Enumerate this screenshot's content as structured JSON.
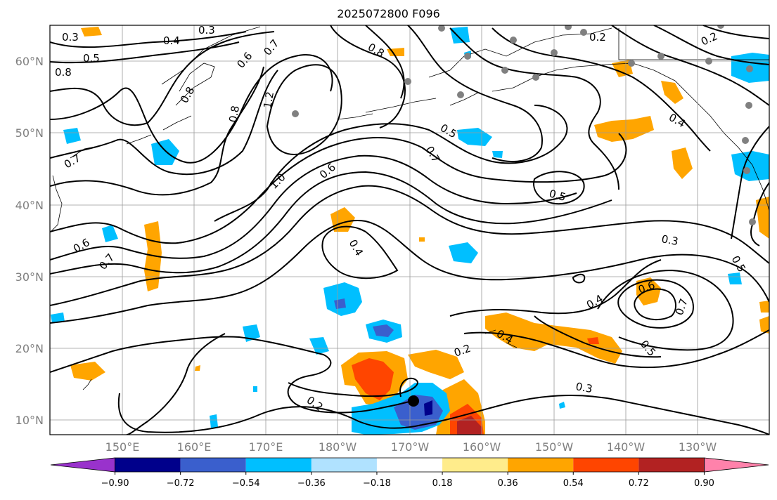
{
  "map": {
    "title": "2025072800 F096",
    "lat_labels": [
      "60°N",
      "50°N",
      "40°N",
      "30°N",
      "20°N",
      "10°N"
    ],
    "lon_labels": [
      "150°E",
      "160°E",
      "170°E",
      "180°W",
      "170°W",
      "160°W",
      "150°W",
      "140°W",
      "130°W"
    ],
    "contour_labels": [
      "0.3",
      "0.3",
      "0.4",
      "0.5",
      "0.6",
      "0.7",
      "0.8",
      "0.8",
      "0.2",
      "0.2",
      "0.8",
      "1.2",
      "0.8",
      "0.7",
      "0.5",
      "0.7",
      "0.6",
      "1.0",
      "0.6",
      "0.7",
      "0.5",
      "0.4",
      "0.4",
      "0.3",
      "0.5",
      "0.4",
      "0.6",
      "0.7",
      "0.5",
      "0.4",
      "0.2",
      "0.3",
      "0.2"
    ],
    "storm_center_marker": true,
    "colors": {
      "land_coast": "#000000",
      "station_dot": "#808080",
      "grid": "#9a9a9a"
    }
  },
  "colorbar": {
    "ticks": [
      "−0.90",
      "−0.72",
      "−0.54",
      "−0.36",
      "−0.18",
      "0.18",
      "0.36",
      "0.54",
      "0.72",
      "0.90"
    ],
    "colors": [
      "#9932cc",
      "#00008b",
      "#3a5fcd",
      "#00bfff",
      "#b0e2ff",
      "#ffffff",
      "#ffec8b",
      "#ffa500",
      "#ff4500",
      "#b22222",
      "#ff82ab"
    ]
  }
}
